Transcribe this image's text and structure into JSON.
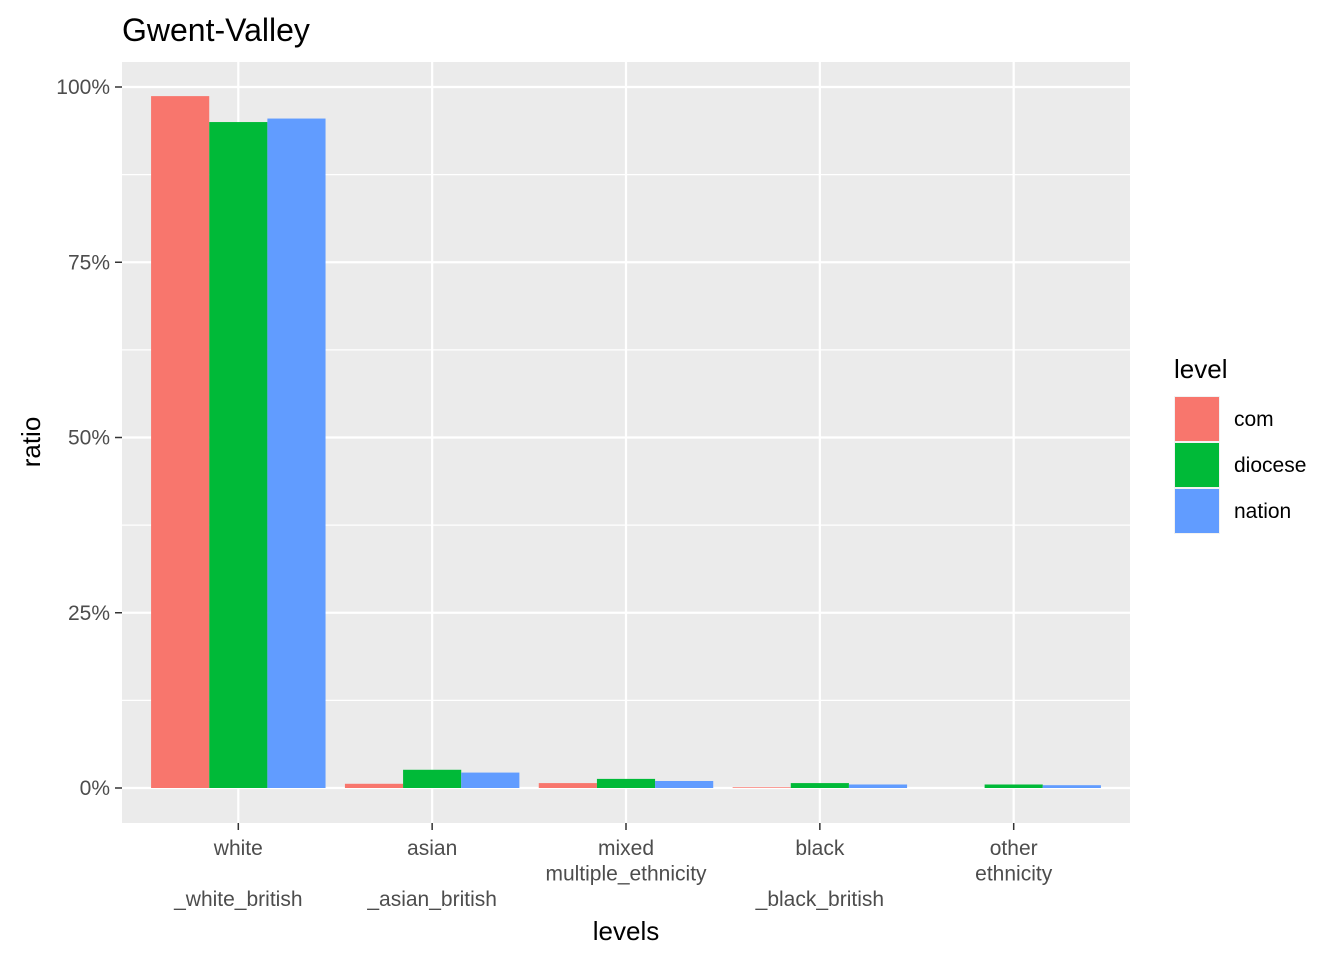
{
  "chart_data": {
    "type": "bar",
    "title": "Gwent-Valley",
    "xlabel": "levels",
    "ylabel": "ratio",
    "categories": [
      [
        "white",
        "",
        "_white_british"
      ],
      [
        "asian",
        "",
        "_asian_british"
      ],
      [
        "mixed",
        "multiple_ethnicity",
        ""
      ],
      [
        "black",
        "",
        "_black_british"
      ],
      [
        "other",
        "ethnicity",
        ""
      ]
    ],
    "series": [
      {
        "name": "com",
        "color": "#F8766D",
        "values": [
          0.987,
          0.006,
          0.007,
          0.001,
          0.0
        ]
      },
      {
        "name": "diocese",
        "color": "#00BA38",
        "values": [
          0.95,
          0.026,
          0.013,
          0.007,
          0.005
        ]
      },
      {
        "name": "nation",
        "color": "#619CFF",
        "values": [
          0.955,
          0.022,
          0.01,
          0.005,
          0.004
        ]
      }
    ],
    "ylim": [
      -0.05,
      1.03
    ],
    "yticks": [
      0,
      0.25,
      0.5,
      0.75,
      1.0
    ],
    "yticklabels": [
      "0%",
      "25%",
      "50%",
      "75%",
      "100%"
    ],
    "grid": true,
    "legend": {
      "title": "level",
      "position": "right"
    },
    "panel_color": "#EBEBEB",
    "grid_color": "#FFFFFF"
  }
}
